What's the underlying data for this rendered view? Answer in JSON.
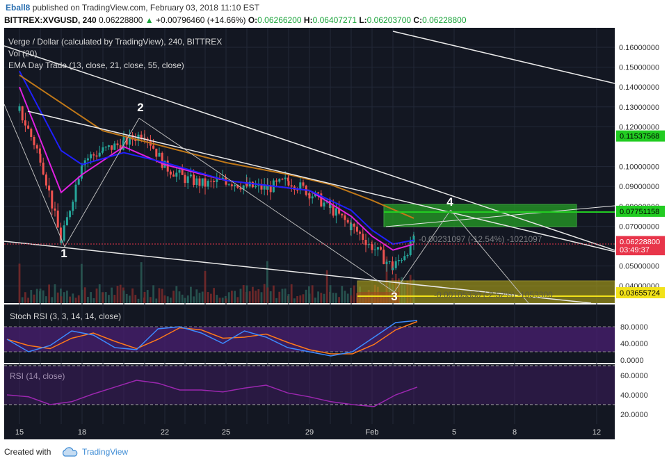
{
  "header": {
    "user": "Eball8",
    "published": "published on TradingView.com, February 03, 2018 11:10 EST",
    "symbol": "BITTREX:XVGUSD, 240",
    "price": "0.06228800",
    "change": "+0.00796460 (+14.66%)",
    "o_label": "O:",
    "o": "0.06266200",
    "h_label": "H:",
    "h": "0.06407271",
    "l_label": "L:",
    "l": "0.06203700",
    "c_label": "C:",
    "c": "0.06228800"
  },
  "legend": {
    "title": "Verge / Dollar (calculated by TradingView), 240, BITTREX",
    "vol": "Vol (20)",
    "ema": "EMA Day Trade (13, close, 21, close, 55, close)"
  },
  "price_axis": [
    "0.16000000",
    "0.15000000",
    "0.14000000",
    "0.13000000",
    "0.12000000",
    "0.10000000",
    "0.09000000",
    "0.08000000",
    "0.07000000",
    "0.05000000",
    "0.04000000"
  ],
  "price_tags": [
    {
      "text": "0.11537568",
      "bg": "#22cc22",
      "fg": "#000000",
      "v": 0.11537568
    },
    {
      "text": "0.07751158",
      "bg": "#22cc22",
      "fg": "#000000",
      "v": 0.07751158
    },
    {
      "text": "0.06228800",
      "bg": "#e8354a",
      "fg": "#ffffff",
      "v": 0.062288
    },
    {
      "text": "03:49:37",
      "bg": "#e8354a",
      "fg": "#ffffff",
      "v": 0.0582
    },
    {
      "text": "0.03655724",
      "bg": "#f2e21a",
      "fg": "#000000",
      "v": 0.03655724
    }
  ],
  "wave_labels": [
    "1",
    "2",
    "3",
    "4"
  ],
  "position_labels": {
    "long": "-0.00231097 (-12.54%) -1021097",
    "short": "-0.00105330 (-2.52%) -1053300"
  },
  "stoch": {
    "label": "Stoch RSI (3, 3, 14, 14, close)",
    "axis": [
      "80.0000",
      "40.0000",
      "0.0000"
    ]
  },
  "rsi": {
    "label": "RSI (14, close)",
    "axis": [
      "60.0000",
      "40.0000",
      "20.0000"
    ]
  },
  "time_axis": [
    "15",
    "18",
    "22",
    "25",
    "29",
    "Feb",
    "5",
    "8",
    "12"
  ],
  "footer": {
    "created": "Created with",
    "brand": "TradingView"
  },
  "colors": {
    "bg": "#131722",
    "up": "#26a69a",
    "down": "#ef5350",
    "ema13": "#e020e0",
    "ema21": "#2020ff",
    "ema55": "#c07818",
    "stochK": "#3d8bff",
    "stochD": "#ff7a1a",
    "rsi": "#9c27b0",
    "band": "#4a1f72"
  },
  "chart_data": {
    "type": "candlestick",
    "title": "Verge / Dollar (calculated by TradingView), 240, BITTREX",
    "symbol": "BITTREX:XVGUSD",
    "interval": "240",
    "ylim": [
      0.03,
      0.165
    ],
    "x_ticks": [
      "15",
      "18",
      "22",
      "25",
      "29",
      "Feb",
      "5",
      "8",
      "12"
    ],
    "series": [
      {
        "name": "Verge / Dollar",
        "anchors": [
          [
            "15",
            0.128
          ],
          [
            "16",
            0.105
          ],
          [
            "17",
            0.062
          ],
          [
            "18",
            0.103
          ],
          [
            "19",
            0.108
          ],
          [
            "20",
            0.112
          ],
          [
            "21",
            0.117
          ],
          [
            "22",
            0.1
          ],
          [
            "23",
            0.094
          ],
          [
            "24",
            0.091
          ],
          [
            "25",
            0.093
          ],
          [
            "26",
            0.09
          ],
          [
            "27",
            0.089
          ],
          [
            "28",
            0.093
          ],
          [
            "29",
            0.087
          ],
          [
            "30",
            0.079
          ],
          [
            "31",
            0.07
          ],
          [
            "Feb",
            0.06
          ],
          [
            "2",
            0.049
          ],
          [
            "3",
            0.0623
          ]
        ]
      },
      {
        "name": "EMA 13",
        "anchors": [
          [
            "15",
            0.14
          ],
          [
            "17",
            0.087
          ],
          [
            "18",
            0.096
          ],
          [
            "20",
            0.11
          ],
          [
            "22",
            0.101
          ],
          [
            "25",
            0.093
          ],
          [
            "29",
            0.088
          ],
          [
            "31",
            0.075
          ],
          [
            "Feb",
            0.065
          ],
          [
            "2",
            0.058
          ],
          [
            "3",
            0.061
          ]
        ]
      },
      {
        "name": "EMA 21",
        "anchors": [
          [
            "15",
            0.148
          ],
          [
            "17",
            0.108
          ],
          [
            "18",
            0.101
          ],
          [
            "20",
            0.107
          ],
          [
            "22",
            0.102
          ],
          [
            "25",
            0.093
          ],
          [
            "29",
            0.088
          ],
          [
            "31",
            0.078
          ],
          [
            "Feb",
            0.068
          ],
          [
            "2",
            0.061
          ],
          [
            "3",
            0.063
          ]
        ]
      },
      {
        "name": "EMA 55",
        "anchors": [
          [
            "15",
            0.146
          ],
          [
            "17",
            0.132
          ],
          [
            "19",
            0.118
          ],
          [
            "22",
            0.11
          ],
          [
            "25",
            0.102
          ],
          [
            "28",
            0.096
          ],
          [
            "30",
            0.091
          ],
          [
            "Feb",
            0.083
          ],
          [
            "3",
            0.074
          ]
        ]
      }
    ],
    "indicators": {
      "stoch_rsi": {
        "ylim": [
          0,
          100
        ],
        "values_k": [
          50,
          20,
          35,
          70,
          60,
          30,
          25,
          75,
          80,
          65,
          40,
          70,
          55,
          30,
          20,
          10,
          20,
          55,
          90,
          95
        ]
      },
      "rsi": {
        "ylim": [
          10,
          70
        ],
        "values": [
          40,
          38,
          30,
          33,
          41,
          48,
          55,
          52,
          45,
          45,
          43,
          47,
          50,
          42,
          38,
          33,
          30,
          28,
          40,
          48
        ]
      }
    },
    "annotations": {
      "wave_labels": [
        "1",
        "2",
        "3",
        "4"
      ],
      "target_long": 0.07751158,
      "target_short": 0.03655724
    }
  }
}
